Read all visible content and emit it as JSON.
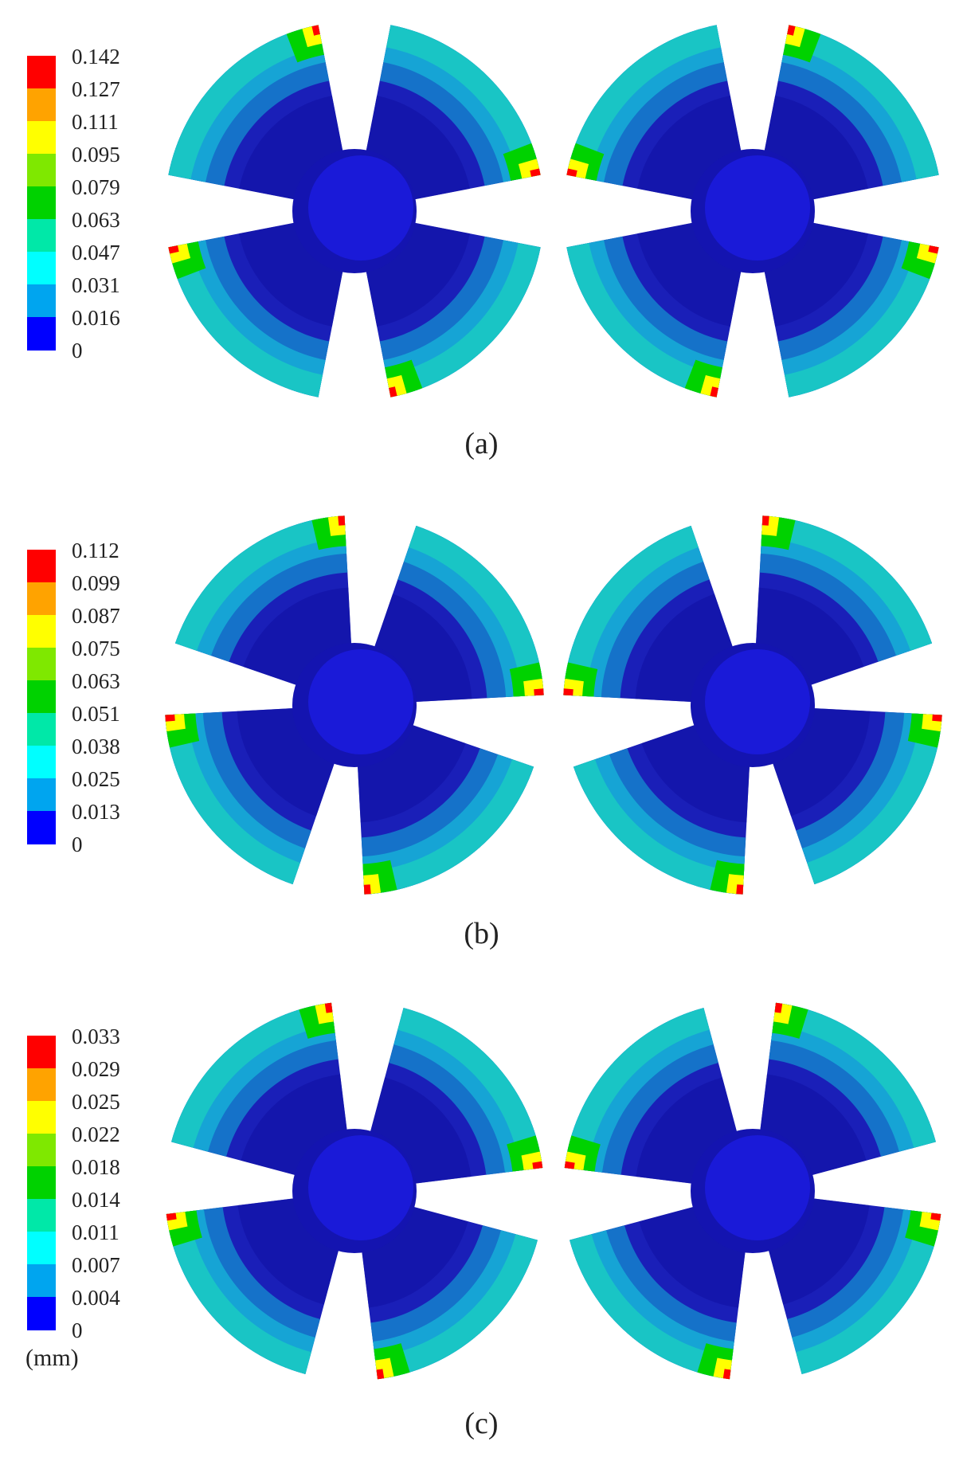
{
  "legend_colors": [
    "#0000ff",
    "#00a5ef",
    "#00ffff",
    "#00e8a8",
    "#00d200",
    "#7fe800",
    "#ffff00",
    "#ffa300",
    "#ff0000"
  ],
  "panels": [
    {
      "caption": "(a)",
      "ticks": [
        "0.142",
        "0.127",
        "0.111",
        "0.095",
        "0.079",
        "0.063",
        "0.047",
        "0.031",
        "0.016",
        "0"
      ]
    },
    {
      "caption": "(b)",
      "ticks": [
        "0.112",
        "0.099",
        "0.087",
        "0.075",
        "0.063",
        "0.051",
        "0.038",
        "0.025",
        "0.013",
        "0"
      ]
    },
    {
      "caption": "(c)",
      "ticks": [
        "0.033",
        "0.029",
        "0.025",
        "0.022",
        "0.018",
        "0.014",
        "0.011",
        "0.007",
        "0.004",
        "0"
      ]
    }
  ],
  "unit_label": "(mm)"
}
